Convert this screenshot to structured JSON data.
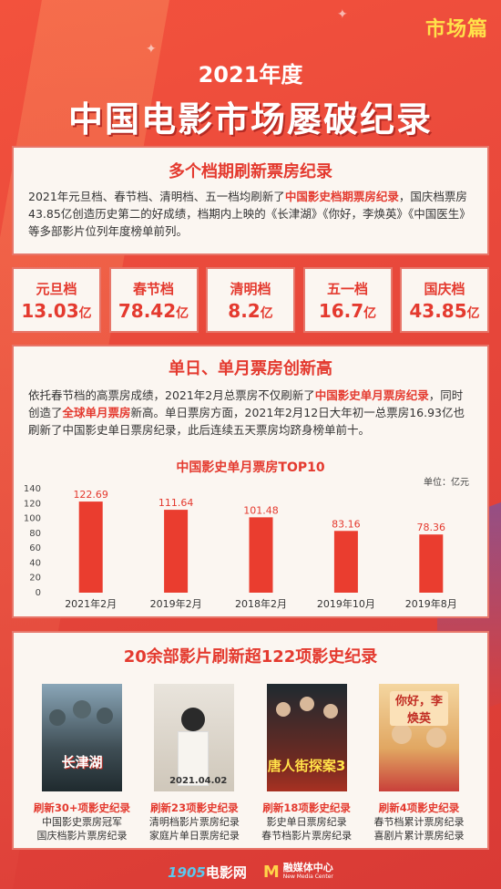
{
  "section_tag": "市场篇",
  "header": {
    "year": "2021年度",
    "title": "中国电影市场屡破纪录"
  },
  "card1": {
    "title": "多个档期刷新票房纪录",
    "p1": "2021年元旦档、春节档、清明档、五一档均刷新了",
    "p1_hl": "中国影史档期票房纪录",
    "p1_end": "，国庆档票房43.85亿创造历史第二的好成绩，档期内上映的《长津湖》《你好，李焕英》《中国医生》等多部影片位列年度榜单前列。"
  },
  "stats": [
    {
      "label": "元旦档",
      "value": "13.03",
      "unit": "亿"
    },
    {
      "label": "春节档",
      "value": "78.42",
      "unit": "亿"
    },
    {
      "label": "清明档",
      "value": "8.2",
      "unit": "亿"
    },
    {
      "label": "五一档",
      "value": "16.7",
      "unit": "亿"
    },
    {
      "label": "国庆档",
      "value": "43.85",
      "unit": "亿"
    }
  ],
  "card2": {
    "title": "单日、单月票房创新高",
    "p1": "依托春节档的高票房成绩，2021年2月总票房不仅刷新了",
    "p1_hl": "中国影史单月票房纪录",
    "p1_mid": "，同时创造了",
    "p1_hl2": "全球单月票房",
    "p1_end": "新高。单日票房方面，2021年2月12日大年初一总票房16.93亿也刷新了中国影史单日票房纪录，此后连续五天票房均跻身榜单前十。"
  },
  "chart_data": {
    "type": "bar",
    "title": "中国影史单月票房TOP10",
    "unit_label": "单位：亿元",
    "categories": [
      "2021年2月",
      "2019年2月",
      "2018年2月",
      "2019年10月",
      "2019年8月"
    ],
    "values": [
      122.69,
      111.64,
      101.48,
      83.16,
      78.36
    ],
    "value_labels": [
      "122.69",
      "111.64",
      "101.48",
      "83.16",
      "78.36"
    ],
    "yticks": [
      "0",
      "20",
      "40",
      "60",
      "80",
      "100",
      "120",
      "140"
    ],
    "ylim": [
      0,
      140
    ],
    "bar_color": "#ea3d2f"
  },
  "card3": {
    "title": "20余部影片刷新超122项影史纪录",
    "films": [
      {
        "poster_title": "长津湖",
        "record": "刷新30+项影史纪录",
        "desc1": "中国影史票房冠军",
        "desc2": "国庆档影片票房纪录"
      },
      {
        "poster_title": "2021.04.02",
        "record": "刷新23项影史纪录",
        "desc1": "清明档影片票房纪录",
        "desc2": "家庭片单日票房纪录"
      },
      {
        "poster_title": "唐人街探案3",
        "record": "刷新18项影史纪录",
        "desc1": "影史单日票房纪录",
        "desc2": "春节档影片票房纪录"
      },
      {
        "poster_title": "你好，李焕英",
        "record": "刷新4项影史纪录",
        "desc1": "春节档累计票房纪录",
        "desc2": "喜剧片累计票房纪录"
      }
    ]
  },
  "footer": {
    "logo1_num": "1905",
    "logo1_text": "电影网",
    "logo2_cn": "融媒体中心",
    "logo2_en": "New Media Center"
  }
}
